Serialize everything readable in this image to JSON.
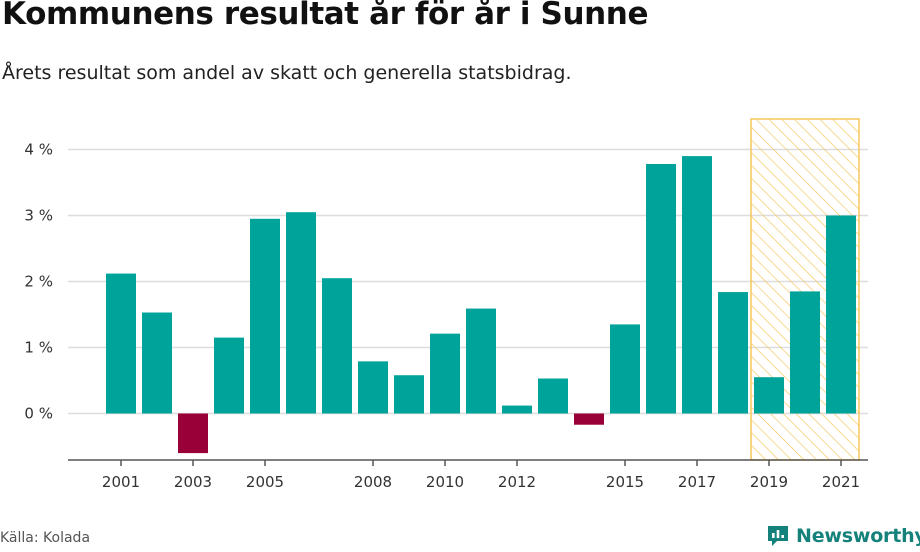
{
  "header": {
    "title": "Kommunens resultat år för år i Sunne",
    "subtitle": "Årets resultat som andel av skatt och generella statsbidrag."
  },
  "footer": {
    "source": "Källa: Kolada",
    "brand": "Newsworthy"
  },
  "colors": {
    "positive": "#00a39a",
    "negative": "#990038",
    "highlight_stroke": "#f5c55a",
    "grid": "#dddddd",
    "axis": "#555555",
    "brand": "#14817a"
  },
  "icons": {
    "brand_logo": "speech-bubble-bar-chart-icon"
  },
  "chart_data": {
    "type": "bar",
    "title": "Kommunens resultat år för år i Sunne",
    "subtitle": "Årets resultat som andel av skatt och generella statsbidrag.",
    "xlabel": "",
    "ylabel": "",
    "y_unit": " %",
    "ylim": [
      -0.7,
      4.5
    ],
    "y_ticks": [
      0,
      1,
      2,
      3,
      4
    ],
    "grid": true,
    "legend": "none",
    "categories": [
      2001,
      2002,
      2003,
      2004,
      2005,
      2006,
      2007,
      2008,
      2009,
      2010,
      2011,
      2012,
      2013,
      2014,
      2015,
      2016,
      2017,
      2018,
      2019,
      2020,
      2021
    ],
    "x_tick_labels": [
      "2001",
      "2003",
      "2005",
      "2008",
      "2010",
      "2012",
      "2015",
      "2017",
      "2019",
      "2021"
    ],
    "values": [
      2.12,
      1.53,
      -0.6,
      1.15,
      2.95,
      3.05,
      2.05,
      0.79,
      0.58,
      1.21,
      1.59,
      0.12,
      0.53,
      -0.17,
      1.35,
      3.78,
      3.9,
      1.84,
      0.55,
      1.85,
      3.0
    ],
    "highlight_range": [
      2019,
      2021
    ]
  }
}
